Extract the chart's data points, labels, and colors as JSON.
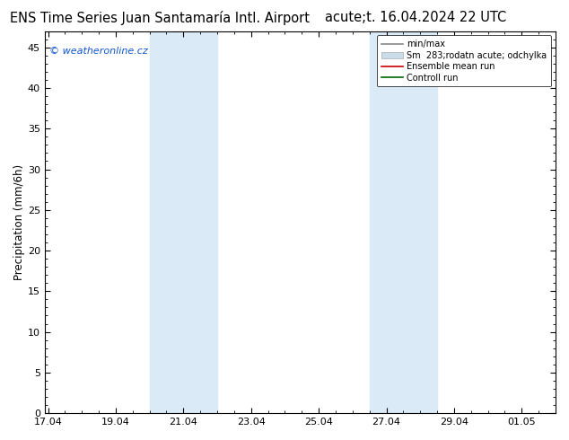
{
  "title_left": "ENS Time Series Juan Santamaría Intl. Airport",
  "title_right": "acute;t. 16.04.2024 22 UTC",
  "ylabel": "Precipitation (mm/6h)",
  "ylim": [
    0,
    47
  ],
  "yticks": [
    0,
    5,
    10,
    15,
    20,
    25,
    30,
    35,
    40,
    45
  ],
  "xtick_labels": [
    "17.04",
    "19.04",
    "21.04",
    "23.04",
    "25.04",
    "27.04",
    "29.04",
    "01.05"
  ],
  "xtick_positions": [
    0,
    2,
    4,
    6,
    8,
    10,
    12,
    14
  ],
  "xlim": [
    -0.1,
    15.0
  ],
  "shade_bands": [
    {
      "xmin": 3.0,
      "xmax": 5.0
    },
    {
      "xmin": 9.5,
      "xmax": 11.5
    }
  ],
  "shade_color": "#daeaf7",
  "watermark_text": "© weatheronline.cz",
  "watermark_color": "#1155cc",
  "legend_labels": [
    "min/max",
    "Sm  283;rodatn acute; odchylka",
    "Ensemble mean run",
    "Controll run"
  ],
  "legend_line_colors": [
    "#888888",
    "#c8dcea",
    "#cc0000",
    "#006600"
  ],
  "bg_color": "#ffffff",
  "plot_bg_color": "#ffffff",
  "title_fontsize": 10.5,
  "axis_fontsize": 8.5,
  "tick_fontsize": 8
}
